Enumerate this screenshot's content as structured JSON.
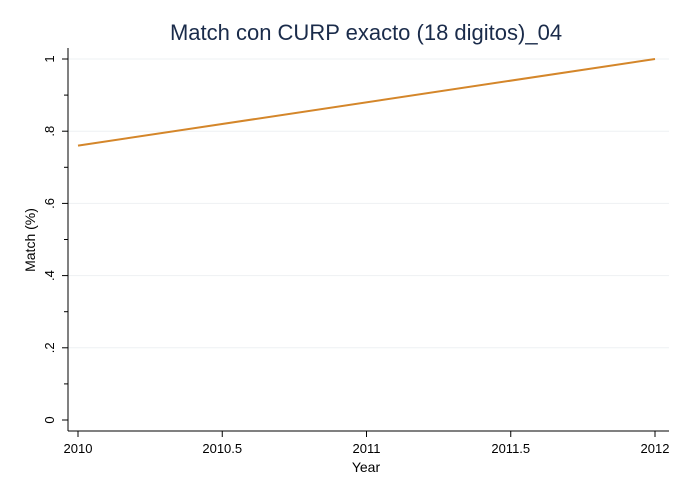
{
  "chart_data": {
    "type": "line",
    "title": "Match con CURP exacto (18 digitos)_04",
    "xlabel": "Year",
    "ylabel": "Match (%)",
    "xlim": [
      2010,
      2012
    ],
    "ylim": [
      0,
      1
    ],
    "x_ticks": [
      {
        "value": 2010,
        "label": "2010"
      },
      {
        "value": 2010.5,
        "label": "2010.5"
      },
      {
        "value": 2011,
        "label": "2011"
      },
      {
        "value": 2011.5,
        "label": "2011.5"
      },
      {
        "value": 2012,
        "label": "2012"
      }
    ],
    "y_ticks": [
      {
        "value": 0,
        "label": "0"
      },
      {
        "value": 0.2,
        "label": ".2"
      },
      {
        "value": 0.4,
        "label": ".4"
      },
      {
        "value": 0.6,
        "label": ".6"
      },
      {
        "value": 0.8,
        "label": ".8"
      },
      {
        "value": 1,
        "label": "1"
      }
    ],
    "y_minor_ticks": [
      0.1,
      0.3,
      0.5,
      0.7,
      0.9
    ],
    "grid": true,
    "series": [
      {
        "color": "#d4862a",
        "points": [
          {
            "x": 2010,
            "y": 0.76
          },
          {
            "x": 2012,
            "y": 1.0
          }
        ]
      }
    ],
    "colors": {
      "line": "#d4862a",
      "title": "#1a2b4a",
      "axis": "#000000",
      "grid": "#eef1f3"
    }
  }
}
